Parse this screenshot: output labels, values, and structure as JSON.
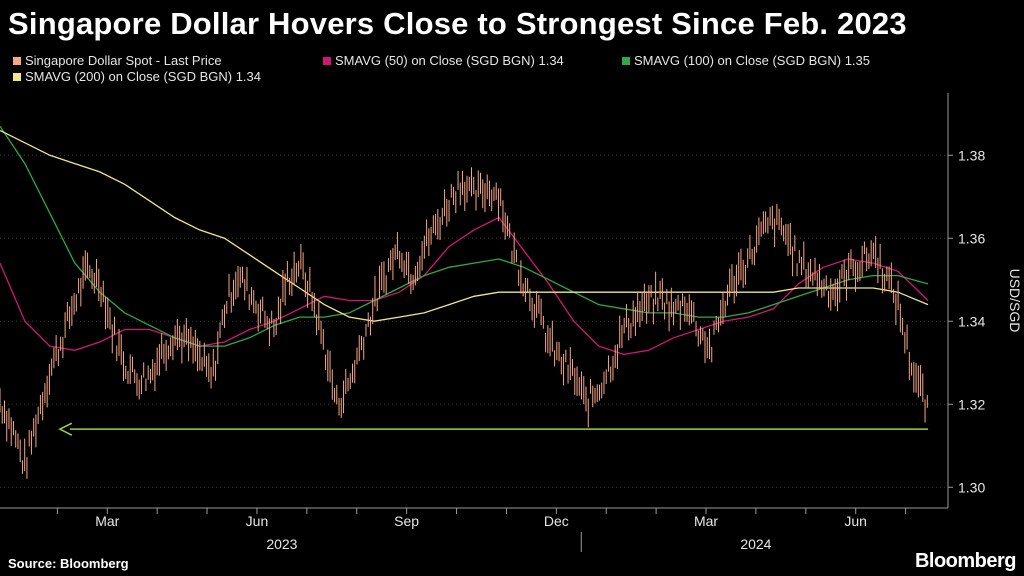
{
  "title": "Singapore Dollar Hovers Close to Strongest Since Feb. 2023",
  "source": "Source: Bloomberg",
  "brand": "Bloomberg",
  "colors": {
    "spot": "#f7a784",
    "sma50": "#d0167a",
    "sma100": "#2ea84a",
    "sma200": "#f0e68a",
    "arrow": "#9bd33a",
    "axis": "#9a9a9a",
    "grid": "#3a3a3a"
  },
  "legend": [
    {
      "label": "Singapore Dollar Spot - Last Price",
      "color": "#f7a784"
    },
    {
      "label": "SMAVG (50)  on Close (SGD BGN) 1.34",
      "color": "#d0167a"
    },
    {
      "label": "SMAVG (100)  on Close (SGD BGN) 1.35",
      "color": "#2ea84a"
    },
    {
      "label": "SMAVG (200)  on Close (SGD BGN) 1.34",
      "color": "#f0e68a"
    }
  ],
  "chart_data": {
    "type": "line",
    "title": "Singapore Dollar Hovers Close to Strongest Since Feb. 2023",
    "ylabel": "USD/SGD",
    "xlabel": "",
    "ylim": [
      1.295,
      1.395
    ],
    "xlim": [
      0,
      19
    ],
    "y_ticks": [
      1.3,
      1.32,
      1.34,
      1.36,
      1.38
    ],
    "y_tick_labels": [
      "1.30",
      "1.32",
      "1.34",
      "1.36",
      "1.38"
    ],
    "x_ticks": [
      {
        "x": 2.15,
        "label": "Mar"
      },
      {
        "x": 5.15,
        "label": "Jun"
      },
      {
        "x": 8.15,
        "label": "Sep"
      },
      {
        "x": 11.15,
        "label": "Dec"
      },
      {
        "x": 14.15,
        "label": "Mar"
      },
      {
        "x": 17.15,
        "label": "Jun"
      }
    ],
    "month_separators": [
      1.15,
      2.15,
      3.15,
      4.15,
      5.15,
      6.15,
      7.15,
      8.15,
      9.15,
      10.15,
      11.15,
      12.15,
      13.15,
      14.15,
      15.15,
      16.15,
      17.15,
      18.15
    ],
    "year_labels": [
      {
        "x": 5.65,
        "label": "2023"
      },
      {
        "x": 15.15,
        "label": "2024"
      }
    ],
    "year_separator": 11.65,
    "spot": {
      "name": "Singapore Dollar Spot - Last Price",
      "x": [
        0,
        0.25,
        0.5,
        0.75,
        1.0,
        1.25,
        1.5,
        1.75,
        2.0,
        2.25,
        2.5,
        2.75,
        3.0,
        3.25,
        3.5,
        3.75,
        4.0,
        4.25,
        4.5,
        4.75,
        5.0,
        5.25,
        5.5,
        5.75,
        6.0,
        6.25,
        6.5,
        6.75,
        7.0,
        7.25,
        7.5,
        7.75,
        8.0,
        8.25,
        8.5,
        8.75,
        9.0,
        9.25,
        9.5,
        9.75,
        10.0,
        10.25,
        10.5,
        10.75,
        11.0,
        11.25,
        11.5,
        11.75,
        12.0,
        12.25,
        12.5,
        12.75,
        13.0,
        13.25,
        13.5,
        13.75,
        14.0,
        14.25,
        14.5,
        14.75,
        15.0,
        15.25,
        15.5,
        15.75,
        16.0,
        16.25,
        16.5,
        16.75,
        17.0,
        17.25,
        17.5,
        17.75,
        18.0,
        18.25,
        18.5,
        18.6
      ],
      "values": [
        1.321,
        1.314,
        1.305,
        1.317,
        1.328,
        1.336,
        1.345,
        1.352,
        1.35,
        1.338,
        1.33,
        1.326,
        1.327,
        1.333,
        1.337,
        1.335,
        1.331,
        1.326,
        1.343,
        1.351,
        1.347,
        1.342,
        1.338,
        1.35,
        1.354,
        1.346,
        1.334,
        1.32,
        1.325,
        1.335,
        1.344,
        1.352,
        1.358,
        1.351,
        1.358,
        1.363,
        1.369,
        1.374,
        1.37,
        1.372,
        1.371,
        1.358,
        1.35,
        1.343,
        1.335,
        1.33,
        1.327,
        1.32,
        1.324,
        1.33,
        1.338,
        1.342,
        1.344,
        1.346,
        1.342,
        1.345,
        1.338,
        1.333,
        1.344,
        1.351,
        1.355,
        1.361,
        1.364,
        1.361,
        1.354,
        1.352,
        1.349,
        1.347,
        1.352,
        1.354,
        1.357,
        1.351,
        1.344,
        1.33,
        1.322,
        1.317
      ]
    },
    "series": [
      {
        "name": "SMAVG (50)",
        "x": [
          0,
          0.5,
          1.0,
          1.5,
          2.0,
          2.5,
          3.0,
          3.5,
          4.0,
          4.5,
          5.0,
          5.5,
          6.0,
          6.5,
          7.0,
          7.5,
          8.0,
          8.5,
          9.0,
          9.5,
          10.0,
          10.5,
          11.0,
          11.5,
          12.0,
          12.5,
          13.0,
          13.5,
          14.0,
          14.5,
          15.0,
          15.5,
          16.0,
          16.5,
          17.0,
          17.5,
          18.0,
          18.6
        ],
        "values": [
          1.354,
          1.34,
          1.334,
          1.333,
          1.335,
          1.338,
          1.338,
          1.336,
          1.334,
          1.335,
          1.338,
          1.34,
          1.343,
          1.346,
          1.345,
          1.345,
          1.347,
          1.351,
          1.358,
          1.362,
          1.365,
          1.357,
          1.349,
          1.34,
          1.334,
          1.332,
          1.333,
          1.336,
          1.338,
          1.34,
          1.341,
          1.343,
          1.349,
          1.353,
          1.355,
          1.354,
          1.352,
          1.345
        ]
      },
      {
        "name": "SMAVG (100)",
        "x": [
          0,
          0.5,
          1.0,
          1.5,
          2.0,
          2.5,
          3.0,
          3.5,
          4.0,
          4.5,
          5.0,
          5.5,
          6.0,
          6.5,
          7.0,
          7.5,
          8.0,
          8.5,
          9.0,
          9.5,
          10.0,
          10.5,
          11.0,
          11.5,
          12.0,
          12.5,
          13.0,
          13.5,
          14.0,
          14.5,
          15.0,
          15.5,
          16.0,
          16.5,
          17.0,
          17.5,
          18.0,
          18.6
        ],
        "values": [
          1.387,
          1.378,
          1.366,
          1.354,
          1.347,
          1.342,
          1.339,
          1.336,
          1.334,
          1.334,
          1.336,
          1.339,
          1.341,
          1.341,
          1.342,
          1.345,
          1.348,
          1.351,
          1.353,
          1.354,
          1.355,
          1.353,
          1.35,
          1.347,
          1.344,
          1.343,
          1.342,
          1.342,
          1.341,
          1.341,
          1.342,
          1.344,
          1.346,
          1.348,
          1.35,
          1.351,
          1.351,
          1.349
        ]
      },
      {
        "name": "SMAVG (200)",
        "x": [
          0,
          0.5,
          1.0,
          1.5,
          2.0,
          2.5,
          3.0,
          3.5,
          4.0,
          4.5,
          5.0,
          5.5,
          6.0,
          6.5,
          7.0,
          7.5,
          8.0,
          8.5,
          9.0,
          9.5,
          10.0,
          10.5,
          11.0,
          11.5,
          12.0,
          12.5,
          13.0,
          13.5,
          14.0,
          14.5,
          15.0,
          15.5,
          16.0,
          16.5,
          17.0,
          17.5,
          18.0,
          18.6
        ],
        "values": [
          1.386,
          1.383,
          1.38,
          1.378,
          1.376,
          1.373,
          1.369,
          1.365,
          1.362,
          1.36,
          1.356,
          1.352,
          1.348,
          1.344,
          1.341,
          1.34,
          1.341,
          1.342,
          1.344,
          1.346,
          1.347,
          1.347,
          1.347,
          1.347,
          1.347,
          1.347,
          1.347,
          1.347,
          1.347,
          1.347,
          1.347,
          1.347,
          1.348,
          1.348,
          1.348,
          1.348,
          1.347,
          1.344
        ]
      }
    ],
    "reference_line": {
      "x0": 1.2,
      "x1": 18.6,
      "y": 1.314
    }
  }
}
